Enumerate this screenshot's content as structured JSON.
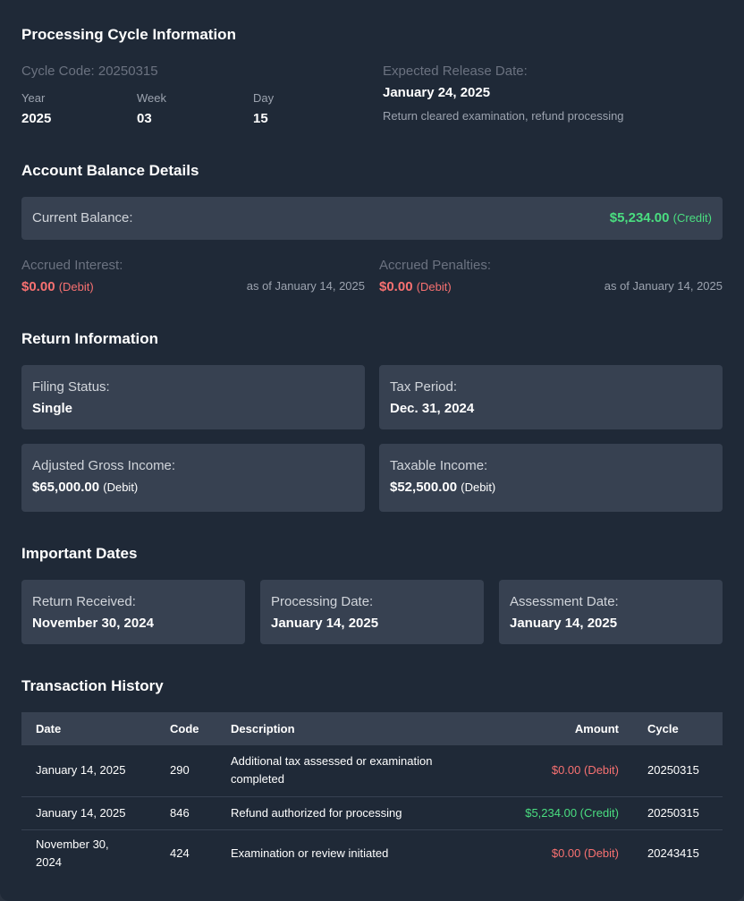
{
  "cycle": {
    "title": "Processing Cycle Information",
    "cycle_code": "Cycle Code: 20250315",
    "year_label": "Year",
    "year": "2025",
    "week_label": "Week",
    "week": "03",
    "day_label": "Day",
    "day": "15",
    "release_label": "Expected Release Date:",
    "release_date": "January 24, 2025",
    "release_note": "Return cleared examination, refund processing"
  },
  "balance": {
    "title": "Account Balance Details",
    "current_label": "Current Balance:",
    "current_value": "$5,234.00",
    "current_type": "(Credit)",
    "interest_label": "Accrued Interest:",
    "interest_value": "$0.00",
    "interest_type": "(Debit)",
    "interest_asof": "as of January 14, 2025",
    "penalties_label": "Accrued Penalties:",
    "penalties_value": "$0.00",
    "penalties_type": "(Debit)",
    "penalties_asof": "as of January 14, 2025"
  },
  "return": {
    "title": "Return Information",
    "filing_label": "Filing Status:",
    "filing": "Single",
    "period_label": "Tax Period:",
    "period": "Dec. 31, 2024",
    "agi_label": "Adjusted Gross Income:",
    "agi": "$65,000.00",
    "agi_type": "(Debit)",
    "taxable_label": "Taxable Income:",
    "taxable": "$52,500.00",
    "taxable_type": "(Debit)"
  },
  "dates": {
    "title": "Important Dates",
    "received_label": "Return Received:",
    "received": "November 30, 2024",
    "processing_label": "Processing Date:",
    "processing": "January 14, 2025",
    "assessment_label": "Assessment Date:",
    "assessment": "January 14, 2025"
  },
  "transactions": {
    "title": "Transaction History",
    "headers": [
      "Date",
      "Code",
      "Description",
      "Amount",
      "Cycle"
    ],
    "rows": [
      {
        "date": "January 14, 2025",
        "code": "290",
        "description": "Additional tax assessed or examination completed",
        "amount": "$0.00 (Debit)",
        "cycle": "20250315"
      },
      {
        "date": "January 14, 2025",
        "code": "846",
        "description": "Refund authorized for processing",
        "amount": "$5,234.00 (Credit)",
        "cycle": "20250315"
      },
      {
        "date": "November 30, 2024",
        "code": "424",
        "description": "Examination or review initiated",
        "amount": "$0.00 (Debit)",
        "cycle": "20243415"
      }
    ]
  },
  "colors": {
    "background": "#1f2937",
    "card": "#374151",
    "credit": "#4ade80",
    "debit": "#f87171"
  }
}
